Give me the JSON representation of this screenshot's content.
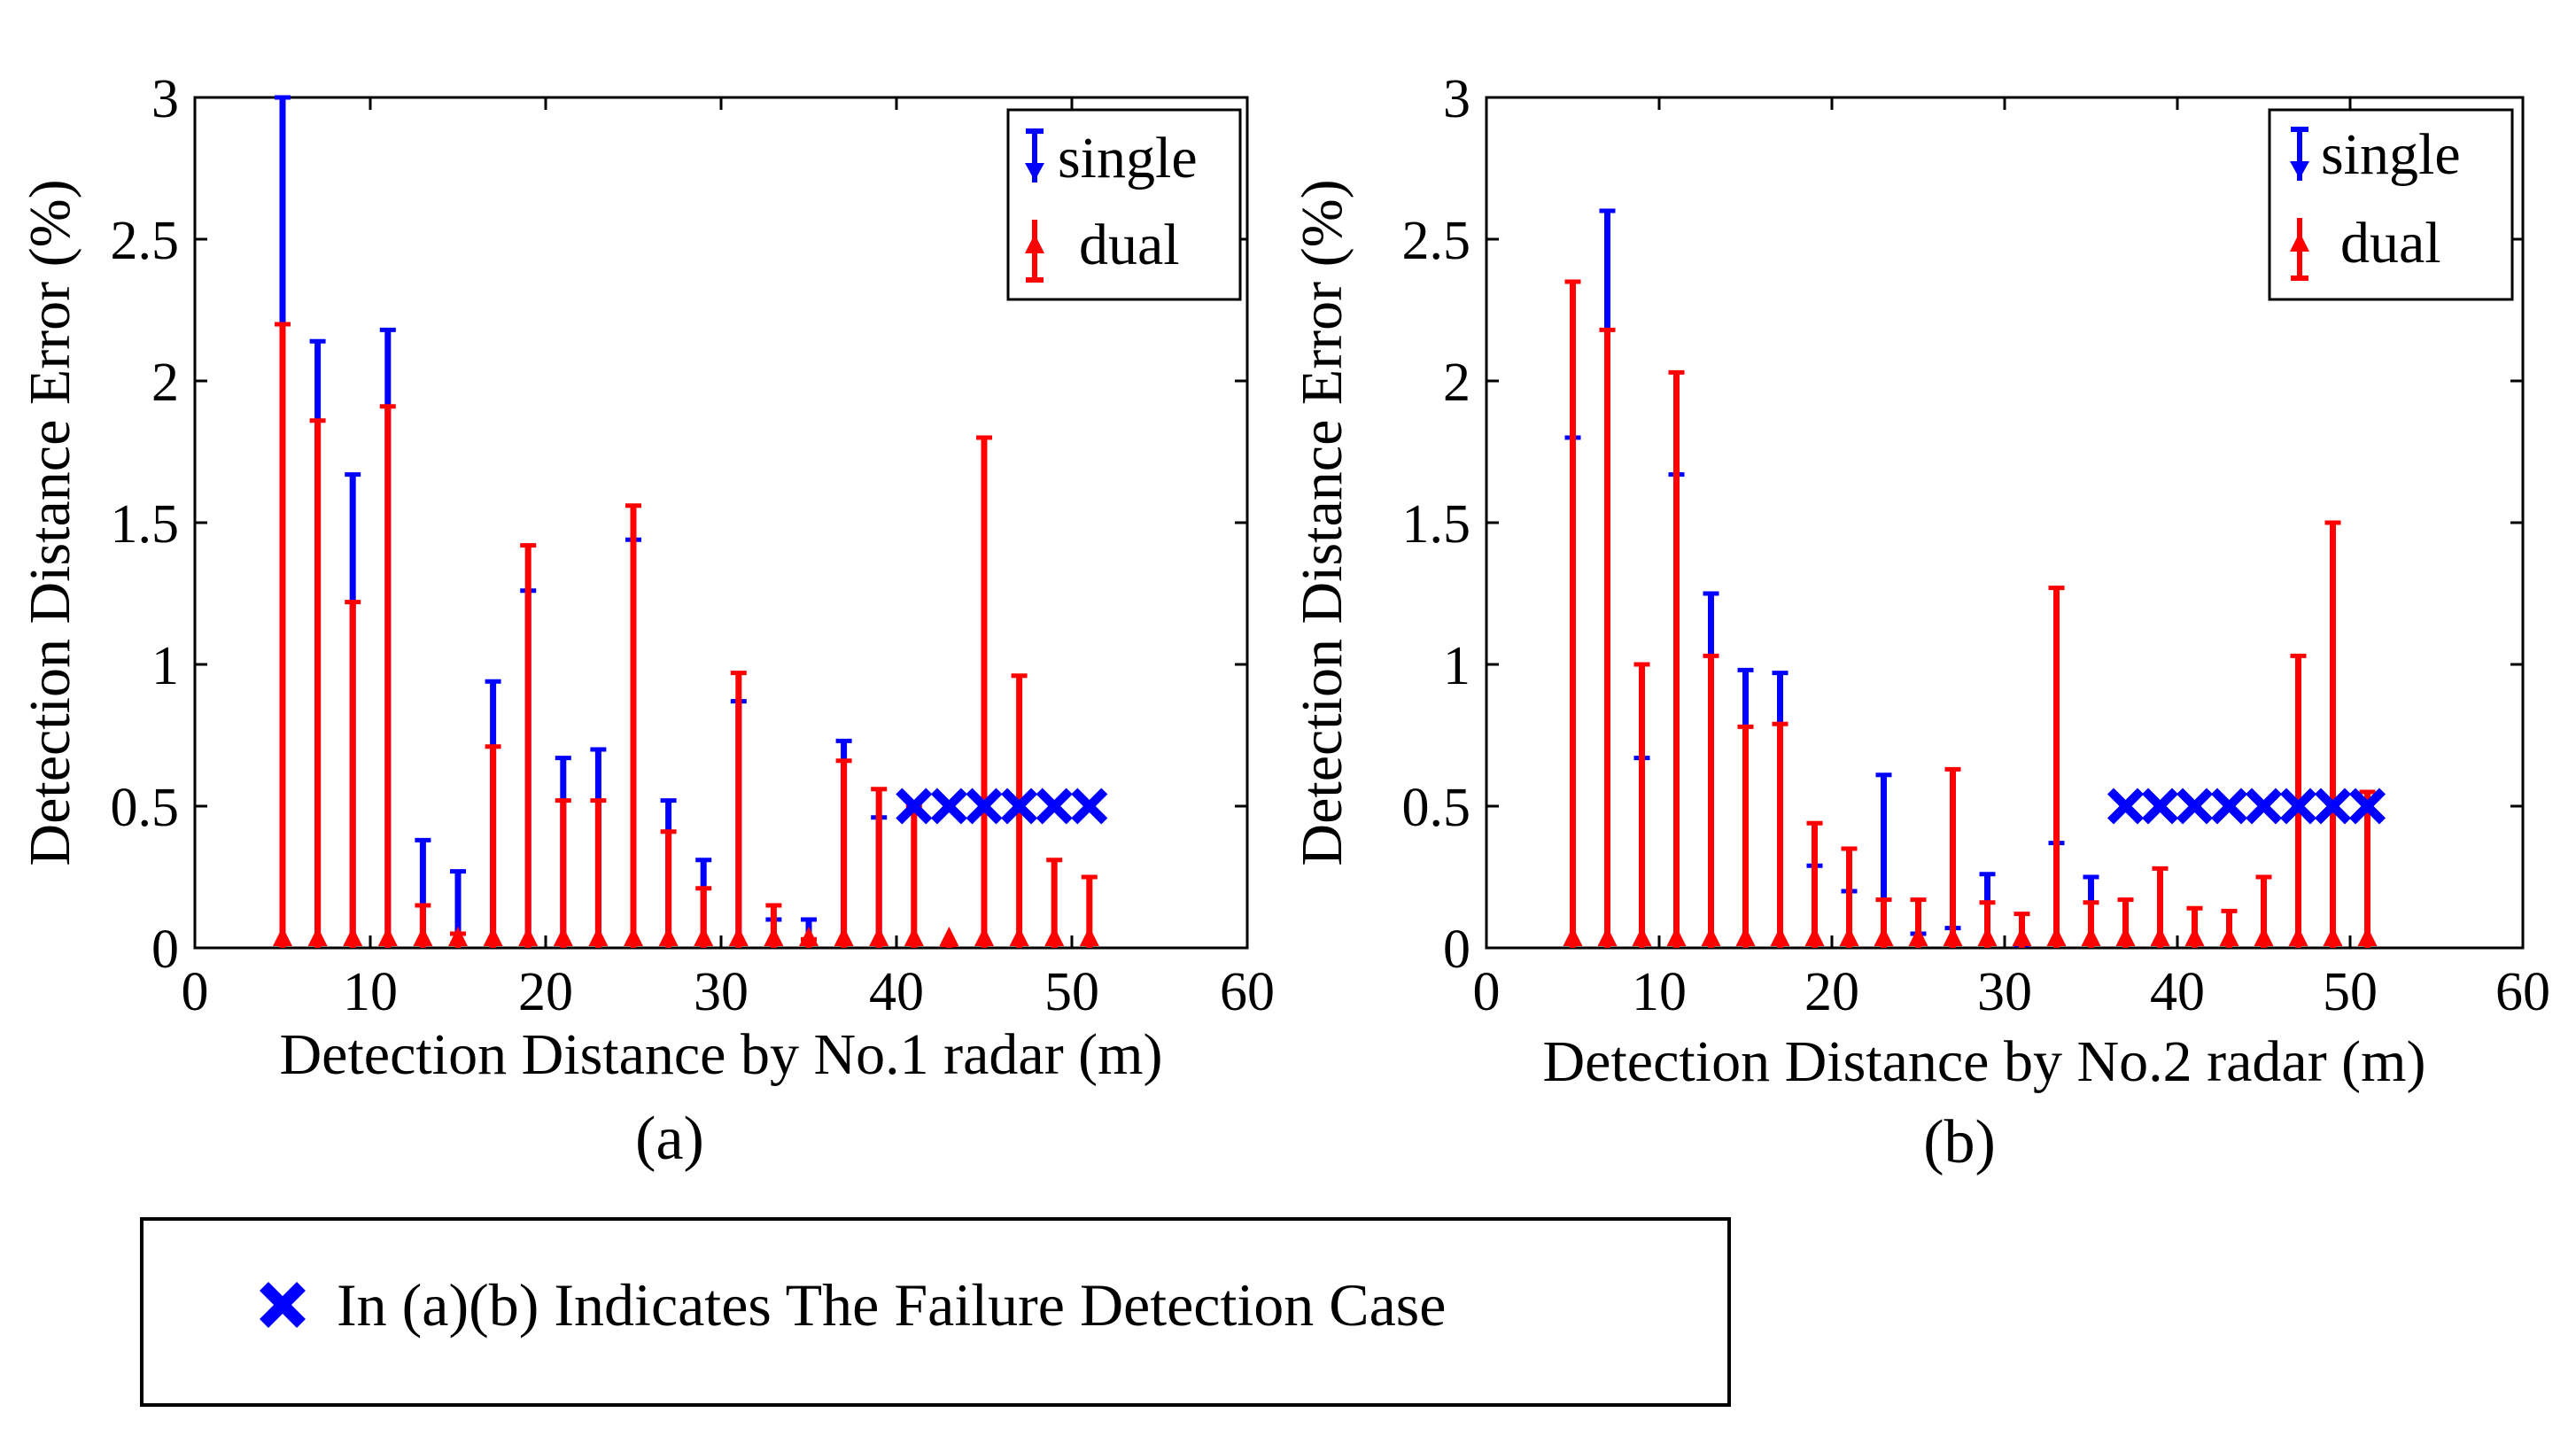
{
  "chart_data": [
    {
      "type": "errorbar",
      "panel": "(a)",
      "xlabel": "Detection Distance by No.1 radar (m)",
      "ylabel": "Detection Distance Error (%)",
      "xlim": [
        0,
        60
      ],
      "ylim": [
        0,
        3
      ],
      "xticks": [
        "0",
        "10",
        "20",
        "30",
        "40",
        "50",
        "60"
      ],
      "yticks": [
        "0",
        "0.5",
        "1",
        "1.5",
        "2",
        "2.5",
        "3"
      ],
      "legend": {
        "position": "top-right",
        "entries": [
          "single",
          "dual"
        ]
      },
      "series": [
        {
          "name": "single",
          "color": "#0000ff",
          "x": [
            5,
            7,
            9,
            11,
            13,
            15,
            17,
            19,
            21,
            23,
            25,
            27,
            29,
            31,
            33,
            35,
            37,
            39
          ],
          "values": [
            3.0,
            2.14,
            1.67,
            2.18,
            0.38,
            0.27,
            0.94,
            1.26,
            0.67,
            0.7,
            1.44,
            0.52,
            0.31,
            0.87,
            0.1,
            0.1,
            0.73,
            0.46
          ]
        },
        {
          "name": "dual",
          "color": "#ff0000",
          "x": [
            5,
            7,
            9,
            11,
            13,
            15,
            17,
            19,
            21,
            23,
            25,
            27,
            29,
            31,
            33,
            35,
            37,
            39,
            41,
            43,
            45,
            47,
            49,
            51
          ],
          "values": [
            2.2,
            1.86,
            1.22,
            1.91,
            0.15,
            0.05,
            0.71,
            1.42,
            0.52,
            0.52,
            1.56,
            0.41,
            0.21,
            0.97,
            0.15,
            0.03,
            0.66,
            0.56,
            0.5,
            0.01,
            1.8,
            0.96,
            0.31,
            0.25
          ]
        },
        {
          "name": "failure",
          "color": "#0000ff",
          "x": [
            41,
            43,
            45,
            47,
            49,
            51
          ],
          "values": [
            0.5,
            0.5,
            0.5,
            0.5,
            0.5,
            0.5
          ]
        }
      ]
    },
    {
      "type": "errorbar",
      "panel": "(b)",
      "xlabel": "Detection Distance by No.2 radar (m)",
      "ylabel": "Detection Distance Error (%)",
      "xlim": [
        0,
        60
      ],
      "ylim": [
        0,
        3
      ],
      "xticks": [
        "0",
        "10",
        "20",
        "30",
        "40",
        "50",
        "60"
      ],
      "yticks": [
        "0",
        "0.5",
        "1",
        "1.5",
        "2",
        "2.5",
        "3"
      ],
      "legend": {
        "position": "top-right",
        "entries": [
          "single",
          "dual"
        ]
      },
      "series": [
        {
          "name": "single",
          "color": "#0000ff",
          "x": [
            5,
            7,
            9,
            11,
            13,
            15,
            17,
            19,
            21,
            23,
            25,
            27,
            29,
            31,
            33,
            35
          ],
          "values": [
            1.8,
            2.6,
            0.67,
            1.67,
            1.25,
            0.98,
            0.97,
            0.29,
            0.2,
            0.61,
            0.05,
            0.07,
            0.26,
            0.01,
            0.37,
            0.25
          ]
        },
        {
          "name": "dual",
          "color": "#ff0000",
          "x": [
            5,
            7,
            9,
            11,
            13,
            15,
            17,
            19,
            21,
            23,
            25,
            27,
            29,
            31,
            33,
            35,
            37,
            39,
            41,
            43,
            45,
            47,
            49,
            51
          ],
          "values": [
            2.35,
            2.18,
            1.0,
            2.03,
            1.03,
            0.78,
            0.79,
            0.44,
            0.35,
            0.17,
            0.17,
            0.63,
            0.16,
            0.12,
            1.27,
            0.16,
            0.17,
            0.28,
            0.14,
            0.13,
            0.25,
            1.03,
            1.5,
            0.55
          ]
        },
        {
          "name": "failure",
          "color": "#0000ff",
          "x": [
            37,
            39,
            41,
            43,
            45,
            47,
            49,
            51
          ],
          "values": [
            0.5,
            0.5,
            0.5,
            0.5,
            0.5,
            0.5,
            0.5,
            0.5
          ]
        }
      ]
    }
  ],
  "note": {
    "text": "In (a)(b) Indicates The Failure Detection Case",
    "marker_color": "#0000ff"
  },
  "colors": {
    "single": "#0000ff",
    "dual": "#ff0000",
    "axis": "#000000"
  }
}
